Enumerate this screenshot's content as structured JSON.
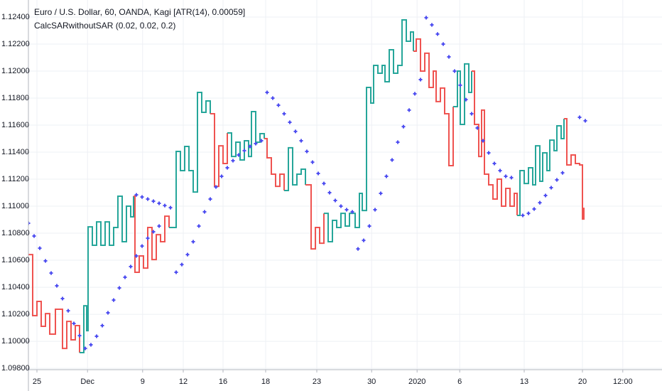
{
  "chart_data": {
    "type": "kagi",
    "title": "Euro / U.S. Dollar, 60, OANDA, Kagi [ATR(14), 0.00059]",
    "subtitle": "CalcSARwithoutSAR (0.02, 0.02, 0.2)",
    "xlim": [
      0,
      111.5
    ],
    "ylim": [
      1.0979,
      1.12526
    ],
    "grid": true,
    "yticks": [
      {
        "value": 1.098,
        "label": "1.09800"
      },
      {
        "value": 1.1,
        "label": "1.10000"
      },
      {
        "value": 1.102,
        "label": "1.10200"
      },
      {
        "value": 1.104,
        "label": "1.10400"
      },
      {
        "value": 1.106,
        "label": "1.10600"
      },
      {
        "value": 1.108,
        "label": "1.10800"
      },
      {
        "value": 1.11,
        "label": "1.11000"
      },
      {
        "value": 1.112,
        "label": "1.11200"
      },
      {
        "value": 1.114,
        "label": "1.11400"
      },
      {
        "value": 1.116,
        "label": "1.11600"
      },
      {
        "value": 1.118,
        "label": "1.11800"
      },
      {
        "value": 1.12,
        "label": "1.12000"
      },
      {
        "value": 1.122,
        "label": "1.12200"
      },
      {
        "value": 1.124,
        "label": "1.12400"
      }
    ],
    "xticks": [
      {
        "value": 1.5,
        "label": "25"
      },
      {
        "value": 10.4,
        "label": "Dec"
      },
      {
        "value": 20.1,
        "label": "9"
      },
      {
        "value": 27.25,
        "label": "12"
      },
      {
        "value": 34.25,
        "label": "16"
      },
      {
        "value": 41.75,
        "label": "18"
      },
      {
        "value": 50.75,
        "label": "23"
      },
      {
        "value": 60.4,
        "label": "30"
      },
      {
        "value": 68.4,
        "label": "2020"
      },
      {
        "value": 75.9,
        "label": "6"
      },
      {
        "value": 87.25,
        "label": "13"
      },
      {
        "value": 97.5,
        "label": "20"
      },
      {
        "value": 104.6,
        "label": "12:00"
      }
    ],
    "series": [
      {
        "type": "step",
        "color": "#ef5350",
        "x": [
          0,
          0.75,
          1.5,
          2.25,
          3,
          3.75,
          4.75,
          6,
          6.75,
          7.5,
          8.25,
          9
        ],
        "values": [
          1.10642,
          1.1019,
          1.10295,
          1.10111,
          1.10205,
          1.10053,
          1.10237,
          1.09947,
          1.10147,
          1.10011,
          1.10116,
          1.09916
        ]
      },
      {
        "type": "step",
        "color": "#26a69a",
        "x": [
          9,
          9.75,
          10.25,
          10.5,
          11.25,
          12,
          12.75,
          13.5,
          14.25,
          15,
          15.75,
          16.5,
          17.25,
          18,
          18.5
        ],
        "values": [
          1.09916,
          1.10263,
          1.10079,
          1.10847,
          1.10711,
          1.10884,
          1.10711,
          1.10884,
          1.10711,
          1.10842,
          1.11074,
          1.10737,
          1.11,
          1.10921,
          1.11074
        ]
      },
      {
        "type": "step",
        "color": "#ef5350",
        "x": [
          18.5,
          18.75,
          19.5,
          20.25,
          21,
          21.75,
          22.5,
          23.25,
          24,
          24.75
        ],
        "values": [
          1.11074,
          1.10511,
          1.10632,
          1.10542,
          1.10842,
          1.10605,
          1.10789,
          1.10737,
          1.10926,
          1.10842
        ]
      },
      {
        "type": "step",
        "color": "#26a69a",
        "x": [
          24.75,
          26,
          26.75,
          27.5,
          28.25,
          29,
          29.75,
          30.5,
          31.25,
          32
        ],
        "values": [
          1.10842,
          1.11405,
          1.11263,
          1.11442,
          1.11263,
          1.11105,
          1.11842,
          1.11695,
          1.11779,
          1.11684
        ]
      },
      {
        "type": "step",
        "color": "#ef5350",
        "x": [
          32,
          32.75,
          33.5,
          34.25,
          35
        ],
        "values": [
          1.11684,
          1.11147,
          1.11447,
          1.11316,
          1.11542
        ]
      },
      {
        "type": "step",
        "color": "#26a69a",
        "x": [
          35,
          35.75,
          36.5,
          37.25,
          38,
          38.75,
          39.25,
          40,
          40.75,
          41.5
        ],
        "values": [
          1.11542,
          1.11368,
          1.11474,
          1.11342,
          1.11484,
          1.11368,
          1.117,
          1.11474,
          1.11537,
          1.115
        ]
      },
      {
        "type": "step",
        "color": "#ef5350",
        "x": [
          41.5,
          42,
          42.75,
          43.5,
          44.25,
          45
        ],
        "values": [
          1.115,
          1.11358,
          1.11237,
          1.11147,
          1.11237,
          1.11116
        ]
      },
      {
        "type": "step",
        "color": "#26a69a",
        "x": [
          45,
          45.75,
          46.5,
          47.25,
          48,
          48.75
        ],
        "values": [
          1.11116,
          1.11432,
          1.11158,
          1.11237,
          1.11274,
          1.11158
        ]
      },
      {
        "type": "step",
        "color": "#ef5350",
        "x": [
          48.75,
          49.75,
          50.5,
          51.25,
          52
        ],
        "values": [
          1.11158,
          1.10684,
          1.10842,
          1.10726,
          1.10947
        ]
      },
      {
        "type": "step",
        "color": "#26a69a",
        "x": [
          52,
          52.75,
          53.5,
          54.25,
          55,
          55.75,
          56.5,
          57.5,
          58.25,
          58.75,
          59.5,
          60.25,
          60.75,
          61.5,
          62.25,
          62.75,
          63.5,
          64.25,
          65,
          65.75,
          66.5,
          67.25,
          67.75
        ],
        "values": [
          1.10947,
          1.10737,
          1.10895,
          1.10842,
          1.10947,
          1.10853,
          1.10947,
          1.10842,
          1.11095,
          1.10968,
          1.11879,
          1.11763,
          1.12042,
          1.11984,
          1.12042,
          1.11921,
          1.12158,
          1.11984,
          1.12042,
          1.12379,
          1.12221,
          1.12289,
          1.12147
        ]
      },
      {
        "type": "step",
        "color": "#ef5350",
        "x": [
          67.75,
          68.25,
          69,
          69.75,
          70.5,
          71.25,
          71.75,
          72.5,
          73.25,
          74,
          74.75
        ],
        "values": [
          1.12147,
          1.12237,
          1.12,
          1.12132,
          1.11879,
          1.12,
          1.11774,
          1.11874,
          1.11684,
          1.113,
          1.11737
        ]
      },
      {
        "type": "step",
        "color": "#26a69a",
        "x": [
          74.75,
          75.5,
          76,
          76.75,
          77.5,
          78
        ],
        "values": [
          1.11737,
          1.12,
          1.11605,
          1.12053,
          1.11842,
          1.12
        ]
      },
      {
        "type": "step",
        "color": "#ef5350",
        "x": [
          78,
          78.5,
          79.25,
          79.75,
          80.25,
          81,
          81.75,
          82.5,
          83.25,
          84,
          84.75,
          85.5,
          86
        ],
        "values": [
          1.12,
          1.11605,
          1.11368,
          1.11711,
          1.11237,
          1.11158,
          1.11053,
          1.112,
          1.11,
          1.11132,
          1.11,
          1.11095,
          1.10932
        ]
      },
      {
        "type": "step",
        "color": "#26a69a",
        "x": [
          86,
          86.5,
          87.25,
          88,
          88.75,
          89.25,
          90,
          90.5,
          91.25,
          91.75,
          92.5,
          93,
          93.75,
          94.25
        ],
        "values": [
          1.10932,
          1.11263,
          1.11168,
          1.11284,
          1.11158,
          1.11447,
          1.11184,
          1.11395,
          1.11263,
          1.11489,
          1.11411,
          1.11595,
          1.115,
          1.11647
        ]
      },
      {
        "type": "step",
        "color": "#ef5350",
        "x": [
          94.25,
          94.75,
          95.5,
          96.25,
          97,
          97.5,
          97.75
        ],
        "values": [
          1.11647,
          1.11305,
          1.11379,
          1.11316,
          1.11305,
          1.10905,
          1.10989
        ]
      },
      {
        "type": "scatter",
        "name": "CalcSARwithoutSAR (0.02, 0.02, 0.2)",
        "color": "#4f4ff0",
        "x": [
          0,
          1,
          2,
          3,
          4,
          5,
          6,
          7,
          8,
          9,
          10,
          11,
          12,
          13,
          14,
          15,
          16,
          17,
          18,
          19,
          20,
          21,
          22,
          23,
          19,
          20,
          21,
          22,
          23,
          24,
          25,
          26,
          27,
          28,
          29,
          30,
          31,
          32,
          33,
          34,
          35,
          36,
          37,
          38,
          39,
          40,
          41,
          42,
          43,
          44,
          45,
          46,
          47,
          48,
          49,
          50,
          51,
          52,
          53,
          54,
          55,
          56,
          57,
          58,
          59,
          60,
          61,
          62,
          63,
          64,
          65,
          66,
          67,
          68,
          69,
          70,
          71,
          72,
          73,
          74,
          75,
          76,
          77,
          78,
          79,
          80,
          81,
          82,
          83,
          84,
          85,
          87,
          88,
          89,
          90,
          91,
          92,
          93,
          94,
          97,
          98
        ],
        "values": [
          1.10874,
          1.10779,
          1.10689,
          1.10595,
          1.10505,
          1.10411,
          1.10316,
          1.10226,
          1.10132,
          1.10042,
          1.09947,
          1.09974,
          1.10037,
          1.10116,
          1.10211,
          1.10305,
          1.10395,
          1.10474,
          1.10553,
          1.10632,
          1.10705,
          1.10763,
          1.10811,
          1.10853,
          1.11084,
          1.11068,
          1.11053,
          1.11037,
          1.11021,
          1.11005,
          1.10989,
          1.10511,
          1.10568,
          1.10642,
          1.10737,
          1.10853,
          1.10958,
          1.11053,
          1.11142,
          1.11221,
          1.11284,
          1.11337,
          1.11379,
          1.11411,
          1.11442,
          1.11463,
          1.11484,
          1.11842,
          1.118,
          1.11747,
          1.11684,
          1.11621,
          1.11553,
          1.11484,
          1.11405,
          1.11326,
          1.11242,
          1.11168,
          1.111,
          1.11042,
          1.11,
          1.10974,
          1.10958,
          1.10684,
          1.10747,
          1.10853,
          1.10974,
          1.11095,
          1.11221,
          1.11342,
          1.11474,
          1.11589,
          1.11711,
          1.11832,
          1.11937,
          1.12395,
          1.12342,
          1.12274,
          1.122,
          1.12105,
          1.12,
          1.11895,
          1.11789,
          1.11684,
          1.11579,
          1.11484,
          1.11395,
          1.11316,
          1.11263,
          1.11221,
          1.11211,
          1.10932,
          1.10947,
          1.10979,
          1.11026,
          1.11079,
          1.11137,
          1.11195,
          1.11247,
          1.11658,
          1.11632
        ]
      }
    ]
  }
}
